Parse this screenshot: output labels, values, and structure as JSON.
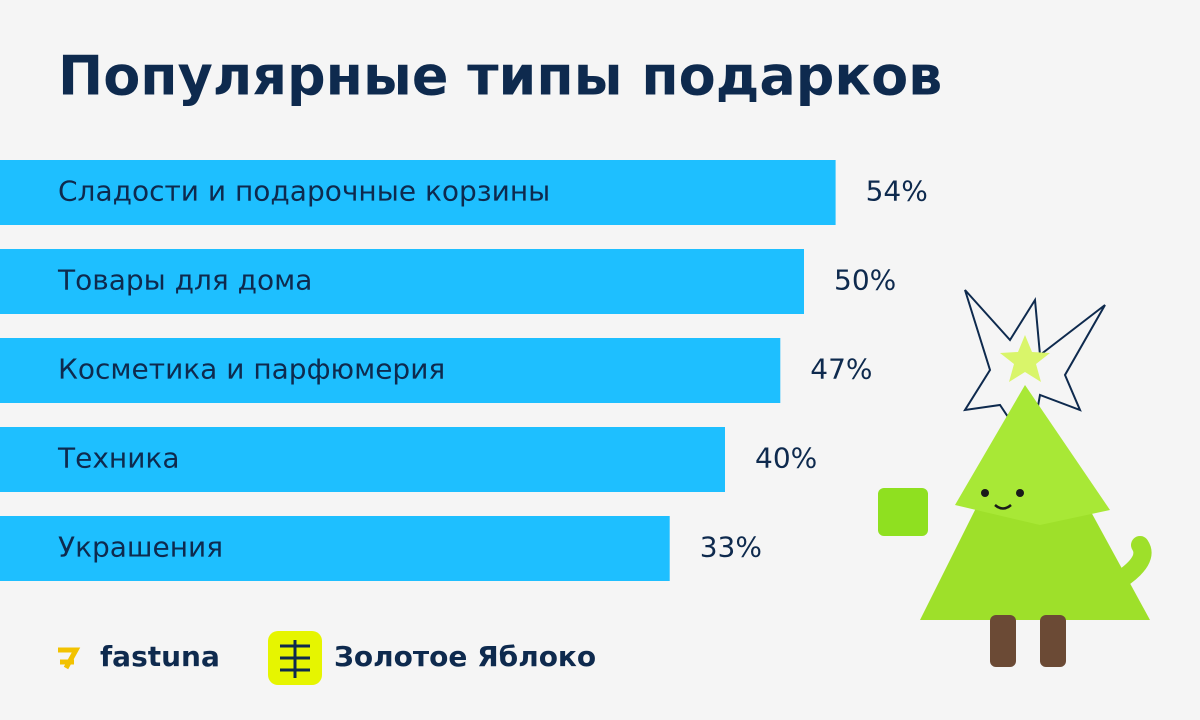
{
  "chart_data": {
    "type": "bar",
    "orientation": "horizontal",
    "title": "Популярные типы подарков",
    "categories": [
      "Сладости и подарочные корзины",
      "Товары для дома",
      "Косметика и парфюмерия",
      "Техника",
      "Украшения"
    ],
    "values": [
      54,
      50,
      47,
      40,
      33
    ],
    "value_labels": [
      "54%",
      "50%",
      "47%",
      "40%",
      "33%"
    ],
    "color": "#1ebfff"
  },
  "logos": [
    "fastuna",
    "Золотое Яблоко"
  ]
}
